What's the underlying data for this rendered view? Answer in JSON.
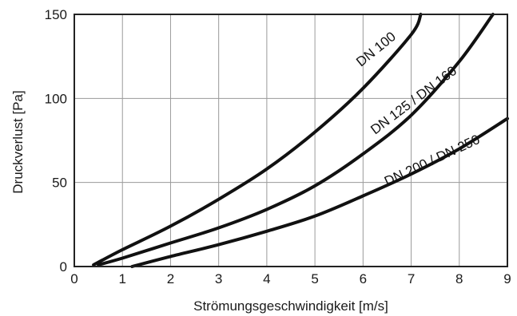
{
  "chart_data": {
    "type": "line",
    "xlabel": "Strömungsgeschwindigkeit [m/s]",
    "ylabel": "Druckverlust [Pa]",
    "xlim": [
      0,
      9
    ],
    "ylim": [
      0,
      150
    ],
    "xticks": [
      "0",
      "1",
      "2",
      "3",
      "4",
      "5",
      "6",
      "7",
      "8",
      "9"
    ],
    "yticks": [
      "0",
      "50",
      "100",
      "150"
    ],
    "grid": true,
    "legend": "none",
    "series": [
      {
        "name": "DN 100",
        "x": [
          0.4,
          1,
          2,
          3,
          4,
          5,
          6,
          7,
          7.2
        ],
        "y": [
          1,
          10,
          24,
          40,
          58,
          80,
          106,
          138,
          150
        ]
      },
      {
        "name": "DN 125 / DN 160",
        "x": [
          0.5,
          1,
          2,
          3,
          4,
          5,
          6,
          7,
          8,
          8.7
        ],
        "y": [
          1,
          5,
          14,
          23,
          34,
          48,
          67,
          90,
          122,
          150
        ]
      },
      {
        "name": "DN 200 / DN 250",
        "x": [
          1.2,
          2,
          3,
          4,
          5,
          6,
          7,
          8,
          9
        ],
        "y": [
          0,
          6,
          13,
          21,
          30,
          42,
          55,
          70,
          88
        ]
      }
    ]
  }
}
